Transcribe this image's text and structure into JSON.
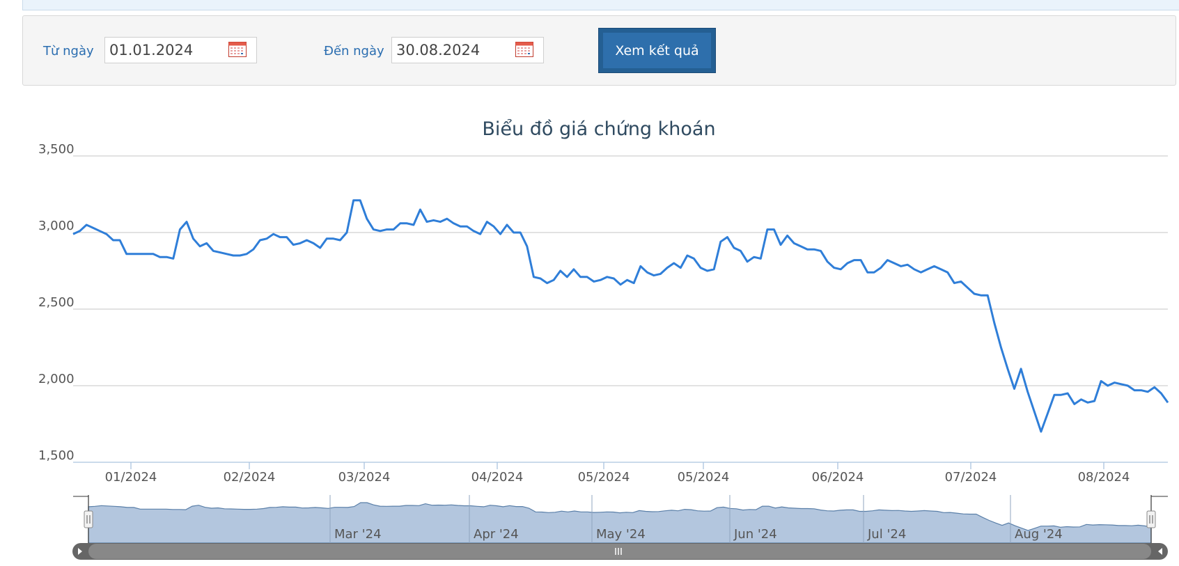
{
  "filter": {
    "from_label": "Từ ngày",
    "from_value": "01.01.2024",
    "to_label": "Đến ngày",
    "to_value": "30.08.2024",
    "submit_label": "Xem kết quả"
  },
  "colors": {
    "line": "#2f7ed8",
    "navigator_fill": "#b3c6de",
    "grid": "#d0d0d0",
    "axis_text": "#555555"
  },
  "chart_data": {
    "type": "line",
    "title": "Biểu đồ giá chứng khoán",
    "ylim": [
      1500,
      3500
    ],
    "yticks": [
      "1,500",
      "2,000",
      "2,500",
      "3,000",
      "3,500"
    ],
    "xticks": [
      "01/2024",
      "02/2024",
      "03/2024",
      "04/2024",
      "05/2024",
      "05/2024",
      "06/2024",
      "07/2024",
      "08/2024"
    ],
    "navigator_labels": [
      "Mar '24",
      "Apr '24",
      "May '24",
      "Jun '24",
      "Jul '24",
      "Aug '24"
    ],
    "series": [
      {
        "values": [
          2990,
          3010,
          3050,
          3030,
          3010,
          2990,
          2950,
          2950,
          2860,
          2860,
          2860,
          2860,
          2860,
          2840,
          2840,
          2830,
          3020,
          3070,
          2960,
          2910,
          2930,
          2880,
          2870,
          2860,
          2850,
          2850,
          2860,
          2890,
          2950,
          2960,
          2990,
          2970,
          2970,
          2920,
          2930,
          2950,
          2930,
          2900,
          2960,
          2960,
          2950,
          3000,
          3210,
          3210,
          3090,
          3020,
          3010,
          3020,
          3020,
          3060,
          3060,
          3050,
          3150,
          3070,
          3080,
          3070,
          3090,
          3060,
          3040,
          3040,
          3010,
          2990,
          3070,
          3040,
          2990,
          3050,
          3000,
          3000,
          2910,
          2710,
          2700,
          2670,
          2690,
          2750,
          2710,
          2760,
          2710,
          2710,
          2680,
          2690,
          2710,
          2700,
          2660,
          2690,
          2670,
          2780,
          2740,
          2720,
          2730,
          2770,
          2800,
          2770,
          2850,
          2830,
          2770,
          2750,
          2760,
          2940,
          2970,
          2900,
          2880,
          2810,
          2840,
          2830,
          3020,
          3020,
          2920,
          2980,
          2930,
          2910,
          2890,
          2890,
          2880,
          2810,
          2770,
          2760,
          2800,
          2820,
          2820,
          2740,
          2740,
          2770,
          2820,
          2800,
          2780,
          2790,
          2760,
          2740,
          2760,
          2780,
          2760,
          2740,
          2670,
          2680,
          2640,
          2600,
          2590,
          2590,
          2410,
          2250,
          2110,
          1980,
          2110,
          1960,
          1830,
          1700,
          1820,
          1940,
          1940,
          1950,
          1880,
          1910,
          1890,
          1900,
          2030,
          2000,
          2020,
          2010,
          2000,
          1970,
          1970,
          1960,
          1990,
          1950,
          1890
        ]
      }
    ]
  }
}
